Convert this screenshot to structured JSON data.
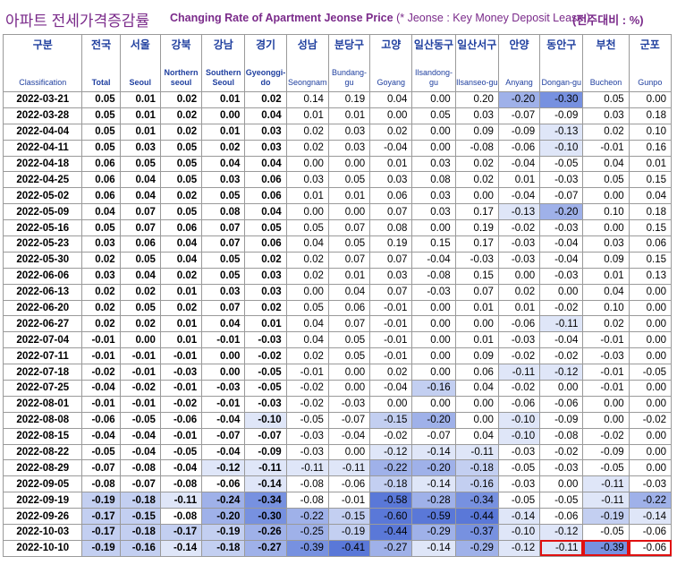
{
  "title": {
    "korean": "아파트 전세가격증감률",
    "english": "Changing Rate of Apartment Jeonse Price",
    "note": "(* Jeonse : Key Money Deposit Lease )",
    "unit": "(전주대비 : %)"
  },
  "headers": [
    {
      "ko": "구분",
      "en": "Classification"
    },
    {
      "ko": "전국",
      "en": "Total"
    },
    {
      "ko": "서울",
      "en": "Seoul"
    },
    {
      "ko": "강북",
      "en": "Northern seoul"
    },
    {
      "ko": "강남",
      "en": "Southern Seoul"
    },
    {
      "ko": "경기",
      "en": "Gyeonggi-do"
    },
    {
      "ko": "성남",
      "en": "Seongnam"
    },
    {
      "ko": "분당구",
      "en": "Bundang-gu"
    },
    {
      "ko": "고양",
      "en": "Goyang"
    },
    {
      "ko": "일산동구",
      "en": "Ilsandong-gu"
    },
    {
      "ko": "일산서구",
      "en": "Ilsanseo-gu"
    },
    {
      "ko": "안양",
      "en": "Anyang"
    },
    {
      "ko": "동안구",
      "en": "Dongan-gu"
    },
    {
      "ko": "부천",
      "en": "Bucheon"
    },
    {
      "ko": "군포",
      "en": "Gunpo"
    }
  ],
  "rows": [
    [
      "2022-03-21",
      "0.05",
      "0.01",
      "0.02",
      "0.01",
      "0.02",
      "0.14",
      "0.19",
      "0.04",
      "0.00",
      "0.20",
      "-0.20",
      "-0.30",
      "0.05",
      "0.00"
    ],
    [
      "2022-03-28",
      "0.05",
      "0.01",
      "0.02",
      "0.00",
      "0.04",
      "0.01",
      "0.01",
      "0.00",
      "0.05",
      "0.03",
      "-0.07",
      "-0.09",
      "0.03",
      "0.18"
    ],
    [
      "2022-04-04",
      "0.05",
      "0.01",
      "0.02",
      "0.01",
      "0.03",
      "0.02",
      "0.03",
      "0.02",
      "0.00",
      "0.09",
      "-0.09",
      "-0.13",
      "0.02",
      "0.10"
    ],
    [
      "2022-04-11",
      "0.05",
      "0.03",
      "0.05",
      "0.02",
      "0.03",
      "0.02",
      "0.03",
      "-0.04",
      "0.00",
      "-0.08",
      "-0.06",
      "-0.10",
      "-0.01",
      "0.16"
    ],
    [
      "2022-04-18",
      "0.06",
      "0.05",
      "0.05",
      "0.04",
      "0.04",
      "0.00",
      "0.00",
      "0.01",
      "0.03",
      "0.02",
      "-0.04",
      "-0.05",
      "0.04",
      "0.01"
    ],
    [
      "2022-04-25",
      "0.06",
      "0.04",
      "0.05",
      "0.03",
      "0.06",
      "0.03",
      "0.05",
      "0.03",
      "0.08",
      "0.02",
      "0.01",
      "-0.03",
      "0.05",
      "0.15"
    ],
    [
      "2022-05-02",
      "0.06",
      "0.04",
      "0.02",
      "0.05",
      "0.06",
      "0.01",
      "0.01",
      "0.06",
      "0.03",
      "0.00",
      "-0.04",
      "-0.07",
      "0.00",
      "0.04"
    ],
    [
      "2022-05-09",
      "0.04",
      "0.07",
      "0.05",
      "0.08",
      "0.04",
      "0.00",
      "0.00",
      "0.07",
      "0.03",
      "0.17",
      "-0.13",
      "-0.20",
      "0.10",
      "0.18"
    ],
    [
      "2022-05-16",
      "0.05",
      "0.07",
      "0.06",
      "0.07",
      "0.05",
      "0.05",
      "0.07",
      "0.08",
      "0.00",
      "0.19",
      "-0.02",
      "-0.03",
      "0.00",
      "0.15"
    ],
    [
      "2022-05-23",
      "0.03",
      "0.06",
      "0.04",
      "0.07",
      "0.06",
      "0.04",
      "0.05",
      "0.19",
      "0.15",
      "0.17",
      "-0.03",
      "-0.04",
      "0.03",
      "0.06"
    ],
    [
      "2022-05-30",
      "0.02",
      "0.05",
      "0.04",
      "0.05",
      "0.02",
      "0.02",
      "0.07",
      "0.07",
      "-0.04",
      "-0.03",
      "-0.03",
      "-0.04",
      "0.09",
      "0.15"
    ],
    [
      "2022-06-06",
      "0.03",
      "0.04",
      "0.02",
      "0.05",
      "0.03",
      "0.02",
      "0.01",
      "0.03",
      "-0.08",
      "0.15",
      "0.00",
      "-0.03",
      "0.01",
      "0.13"
    ],
    [
      "2022-06-13",
      "0.02",
      "0.02",
      "0.01",
      "0.03",
      "0.03",
      "0.00",
      "0.04",
      "0.07",
      "-0.03",
      "0.07",
      "0.02",
      "0.00",
      "0.04",
      "0.00"
    ],
    [
      "2022-06-20",
      "0.02",
      "0.05",
      "0.02",
      "0.07",
      "0.02",
      "0.05",
      "0.06",
      "-0.01",
      "0.00",
      "0.01",
      "0.01",
      "-0.02",
      "0.10",
      "0.00"
    ],
    [
      "2022-06-27",
      "0.02",
      "0.02",
      "0.01",
      "0.04",
      "0.01",
      "0.04",
      "0.07",
      "-0.01",
      "0.00",
      "0.00",
      "-0.06",
      "-0.11",
      "0.02",
      "0.00"
    ],
    [
      "2022-07-04",
      "-0.01",
      "0.00",
      "0.01",
      "-0.01",
      "-0.03",
      "0.04",
      "0.05",
      "-0.01",
      "0.00",
      "0.01",
      "-0.03",
      "-0.04",
      "-0.01",
      "0.00"
    ],
    [
      "2022-07-11",
      "-0.01",
      "-0.01",
      "-0.01",
      "0.00",
      "-0.02",
      "0.02",
      "0.05",
      "-0.01",
      "0.00",
      "0.09",
      "-0.02",
      "-0.02",
      "-0.03",
      "0.00"
    ],
    [
      "2022-07-18",
      "-0.02",
      "-0.01",
      "-0.03",
      "0.00",
      "-0.05",
      "-0.01",
      "0.00",
      "0.02",
      "0.00",
      "0.06",
      "-0.11",
      "-0.12",
      "-0.01",
      "-0.05"
    ],
    [
      "2022-07-25",
      "-0.04",
      "-0.02",
      "-0.01",
      "-0.03",
      "-0.05",
      "-0.02",
      "0.00",
      "-0.04",
      "-0.16",
      "0.04",
      "-0.02",
      "0.00",
      "-0.01",
      "0.00"
    ],
    [
      "2022-08-01",
      "-0.01",
      "-0.01",
      "-0.02",
      "-0.01",
      "-0.03",
      "-0.02",
      "-0.03",
      "0.00",
      "0.00",
      "0.00",
      "-0.06",
      "-0.06",
      "0.00",
      "0.00"
    ],
    [
      "2022-08-08",
      "-0.06",
      "-0.05",
      "-0.06",
      "-0.04",
      "-0.10",
      "-0.05",
      "-0.07",
      "-0.15",
      "-0.20",
      "0.00",
      "-0.10",
      "-0.09",
      "0.00",
      "-0.02"
    ],
    [
      "2022-08-15",
      "-0.04",
      "-0.04",
      "-0.01",
      "-0.07",
      "-0.07",
      "-0.03",
      "-0.04",
      "-0.02",
      "-0.07",
      "0.04",
      "-0.10",
      "-0.08",
      "-0.02",
      "0.00"
    ],
    [
      "2022-08-22",
      "-0.05",
      "-0.04",
      "-0.05",
      "-0.04",
      "-0.09",
      "-0.03",
      "0.00",
      "-0.12",
      "-0.14",
      "-0.11",
      "-0.03",
      "-0.02",
      "-0.09",
      "0.00"
    ],
    [
      "2022-08-29",
      "-0.07",
      "-0.08",
      "-0.04",
      "-0.12",
      "-0.11",
      "-0.11",
      "-0.11",
      "-0.22",
      "-0.20",
      "-0.18",
      "-0.05",
      "-0.03",
      "-0.05",
      "0.00"
    ],
    [
      "2022-09-05",
      "-0.08",
      "-0.07",
      "-0.08",
      "-0.06",
      "-0.14",
      "-0.08",
      "-0.06",
      "-0.18",
      "-0.14",
      "-0.16",
      "-0.03",
      "0.00",
      "-0.11",
      "-0.03"
    ],
    [
      "2022-09-19",
      "-0.19",
      "-0.18",
      "-0.11",
      "-0.24",
      "-0.34",
      "-0.08",
      "-0.01",
      "-0.58",
      "-0.28",
      "-0.34",
      "-0.05",
      "-0.05",
      "-0.11",
      "-0.22"
    ],
    [
      "2022-09-26",
      "-0.17",
      "-0.15",
      "-0.08",
      "-0.20",
      "-0.30",
      "-0.22",
      "-0.15",
      "-0.60",
      "-0.59",
      "-0.44",
      "-0.14",
      "-0.06",
      "-0.19",
      "-0.14"
    ],
    [
      "2022-10-03",
      "-0.17",
      "-0.18",
      "-0.17",
      "-0.19",
      "-0.26",
      "-0.25",
      "-0.19",
      "-0.44",
      "-0.29",
      "-0.37",
      "-0.10",
      "-0.12",
      "-0.05",
      "-0.06"
    ],
    [
      "2022-10-10",
      "-0.19",
      "-0.16",
      "-0.14",
      "-0.18",
      "-0.27",
      "-0.39",
      "-0.41",
      "-0.27",
      "-0.14",
      "-0.29",
      "-0.12",
      "-0.11",
      "-0.39",
      "-0.06"
    ]
  ]
}
